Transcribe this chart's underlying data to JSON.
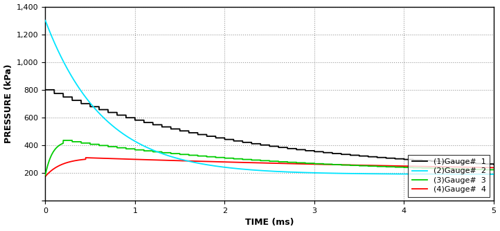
{
  "title": "",
  "xlabel": "TIME (ms)",
  "ylabel": "PRESSURE (kPa)",
  "xlim": [
    0,
    5
  ],
  "ylim": [
    0,
    1400
  ],
  "yticks": [
    0,
    200,
    400,
    600,
    800,
    1000,
    1200,
    1400
  ],
  "xticks": [
    0,
    1,
    2,
    3,
    4,
    5
  ],
  "background_color": "#ffffff",
  "grid_color": "#999999",
  "series": [
    {
      "label": "(1)Gauge#  1",
      "color": "#000000",
      "linewidth": 1.3,
      "peak": 800,
      "decay_tau": 2.2,
      "floor": 200,
      "step_interval": 0.1
    },
    {
      "label": "(2)Gauge#  2",
      "color": "#00e5ff",
      "linewidth": 1.3,
      "peak": 1300,
      "decay_tau": 0.65,
      "floor": 190,
      "step_interval": 0.0
    },
    {
      "label": "(3)Gauge#  3",
      "color": "#00cc00",
      "linewidth": 1.3,
      "peak": 435,
      "rise_tau": 0.08,
      "decay_tau": 2.5,
      "floor": 185,
      "step_interval": 0.1
    },
    {
      "label": "(4)Gauge#  4",
      "color": "#ff0000",
      "linewidth": 1.3,
      "peak": 310,
      "rise_tau": 0.18,
      "decay_tau": 6.0,
      "floor": 175,
      "step_interval": 0.0
    }
  ],
  "legend_loc": "lower right",
  "legend_fontsize": 8,
  "axis_label_fontsize": 9,
  "tick_fontsize": 8
}
